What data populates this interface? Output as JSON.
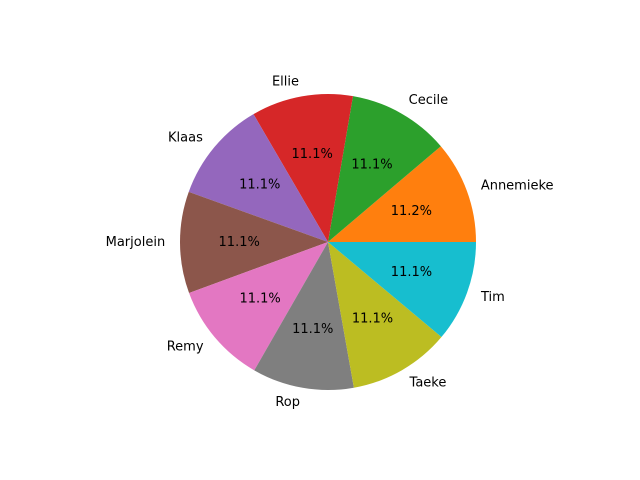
{
  "chart_data": {
    "type": "pie",
    "categories": [
      "Annemieke",
      "Cecile",
      "Ellie",
      "Klaas",
      "Marjolein",
      "Remy",
      "Rop",
      "Taeke",
      "Tim"
    ],
    "values": [
      11.2,
      11.1,
      11.1,
      11.1,
      11.1,
      11.1,
      11.1,
      11.1,
      11.1
    ],
    "percent_labels": [
      "11.2%",
      "11.1%",
      "11.1%",
      "11.1%",
      "11.1%",
      "11.1%",
      "11.1%",
      "11.1%",
      "11.1%"
    ],
    "colors": [
      "#ff7f0e",
      "#2ca02c",
      "#d62728",
      "#9467bd",
      "#8c564b",
      "#e377c2",
      "#7f7f7f",
      "#bcbd22",
      "#17becf"
    ],
    "title": "",
    "start_angle_deg": 0,
    "direction": "counterclockwise"
  }
}
